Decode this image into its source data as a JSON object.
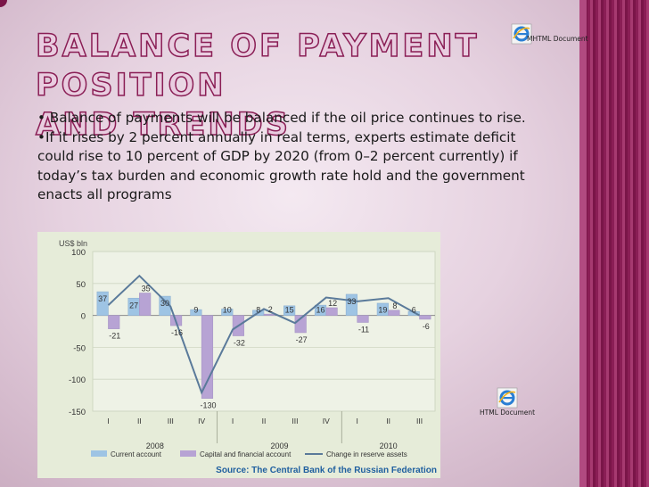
{
  "slide": {
    "title_line1": "Balance of payment position",
    "title_line2": "and trends",
    "bullets": [
      "• Balance of payments will be balanced if the oil price continues to rise.",
      "•If it rises by 2 percent annually in real terms, experts estimate deficit could rise to 10 percent of GDP by 2020 (from 0–2 percent currently) if today’s tax burden and economic growth rate hold and the government enacts all programs"
    ],
    "icons": {
      "mhtml_label": "MHTML Document",
      "html_label": "HTML Document",
      "icon_name": "internet-explorer-icon"
    },
    "colors": {
      "title_fill": "#e9cde0",
      "title_outline": "#8a1e55",
      "stripe": "#8a1e55"
    }
  },
  "chart_data": {
    "type": "bar",
    "unit_label": "US$ bln",
    "ylim": [
      -150,
      100
    ],
    "yticks": [
      100,
      50,
      0,
      -50,
      -100,
      -150
    ],
    "quarters": [
      "I",
      "II",
      "III",
      "IV",
      "I",
      "II",
      "III",
      "IV",
      "I",
      "II",
      "III"
    ],
    "years": [
      {
        "label": "2008",
        "start": 0,
        "end": 3
      },
      {
        "label": "2009",
        "start": 4,
        "end": 7
      },
      {
        "label": "2010",
        "start": 8,
        "end": 10
      }
    ],
    "series": [
      {
        "name": "Current account",
        "color": "#9ec4e4",
        "values": [
          37,
          27,
          30,
          9,
          10,
          8,
          15,
          16,
          33,
          19,
          6
        ]
      },
      {
        "name": "Capital and financial account",
        "color": "#b7a3d4",
        "values": [
          -21,
          35,
          -16,
          -130,
          -32,
          2,
          -27,
          12,
          -11,
          8,
          -6
        ]
      },
      {
        "name": "Change in reserve assets",
        "color": "#5a7a9a",
        "values": [
          16,
          62,
          14,
          -121,
          -22,
          10,
          -12,
          28,
          22,
          27,
          0
        ]
      }
    ],
    "source": "Source: The Central Bank of the Russian Federation"
  }
}
